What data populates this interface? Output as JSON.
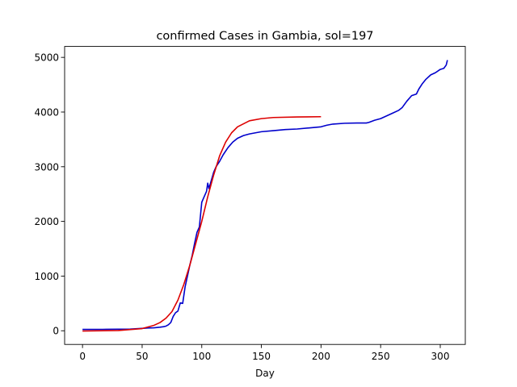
{
  "chart_data": {
    "type": "line",
    "title": "confirmed Cases in Gambia, sol=197",
    "xlabel": "Day",
    "ylabel": "",
    "xlim": [
      -15,
      321
    ],
    "ylim": [
      -250,
      5200
    ],
    "xticks": [
      0,
      50,
      100,
      150,
      200,
      250,
      300
    ],
    "yticks": [
      0,
      1000,
      2000,
      3000,
      4000,
      5000
    ],
    "grid": false,
    "colors": {
      "confirmed": "#0000cc",
      "fitted": "#dd0000"
    },
    "series": [
      {
        "key": "confirmed",
        "points": [
          [
            0,
            25
          ],
          [
            20,
            26
          ],
          [
            40,
            30
          ],
          [
            55,
            50
          ],
          [
            60,
            55
          ],
          [
            65,
            65
          ],
          [
            68,
            75
          ],
          [
            70,
            85
          ],
          [
            72,
            110
          ],
          [
            74,
            150
          ],
          [
            76,
            260
          ],
          [
            78,
            330
          ],
          [
            80,
            360
          ],
          [
            82,
            510
          ],
          [
            84,
            500
          ],
          [
            86,
            800
          ],
          [
            88,
            1000
          ],
          [
            90,
            1200
          ],
          [
            92,
            1380
          ],
          [
            94,
            1600
          ],
          [
            96,
            1800
          ],
          [
            98,
            1900
          ],
          [
            100,
            2350
          ],
          [
            102,
            2450
          ],
          [
            104,
            2550
          ],
          [
            105,
            2700
          ],
          [
            106,
            2600
          ],
          [
            108,
            2750
          ],
          [
            110,
            2900
          ],
          [
            112,
            3000
          ],
          [
            115,
            3100
          ],
          [
            118,
            3220
          ],
          [
            122,
            3350
          ],
          [
            126,
            3450
          ],
          [
            130,
            3520
          ],
          [
            135,
            3570
          ],
          [
            140,
            3600
          ],
          [
            150,
            3640
          ],
          [
            160,
            3660
          ],
          [
            170,
            3680
          ],
          [
            180,
            3690
          ],
          [
            190,
            3710
          ],
          [
            200,
            3730
          ],
          [
            205,
            3760
          ],
          [
            210,
            3780
          ],
          [
            220,
            3795
          ],
          [
            230,
            3800
          ],
          [
            238,
            3800
          ],
          [
            240,
            3810
          ],
          [
            245,
            3850
          ],
          [
            250,
            3880
          ],
          [
            255,
            3930
          ],
          [
            260,
            3980
          ],
          [
            265,
            4030
          ],
          [
            268,
            4080
          ],
          [
            272,
            4200
          ],
          [
            276,
            4300
          ],
          [
            280,
            4330
          ],
          [
            282,
            4420
          ],
          [
            285,
            4520
          ],
          [
            288,
            4600
          ],
          [
            292,
            4680
          ],
          [
            296,
            4720
          ],
          [
            300,
            4780
          ],
          [
            303,
            4800
          ],
          [
            304,
            4830
          ],
          [
            305,
            4860
          ],
          [
            306,
            4950
          ]
        ]
      },
      {
        "key": "fitted",
        "points": [
          [
            0,
            -5
          ],
          [
            30,
            5
          ],
          [
            50,
            40
          ],
          [
            60,
            100
          ],
          [
            65,
            150
          ],
          [
            70,
            230
          ],
          [
            75,
            350
          ],
          [
            80,
            560
          ],
          [
            85,
            850
          ],
          [
            90,
            1200
          ],
          [
            95,
            1600
          ],
          [
            100,
            2000
          ],
          [
            105,
            2450
          ],
          [
            110,
            2850
          ],
          [
            115,
            3200
          ],
          [
            120,
            3450
          ],
          [
            125,
            3620
          ],
          [
            130,
            3730
          ],
          [
            140,
            3840
          ],
          [
            150,
            3880
          ],
          [
            160,
            3900
          ],
          [
            180,
            3910
          ],
          [
            200,
            3915
          ]
        ]
      }
    ]
  }
}
